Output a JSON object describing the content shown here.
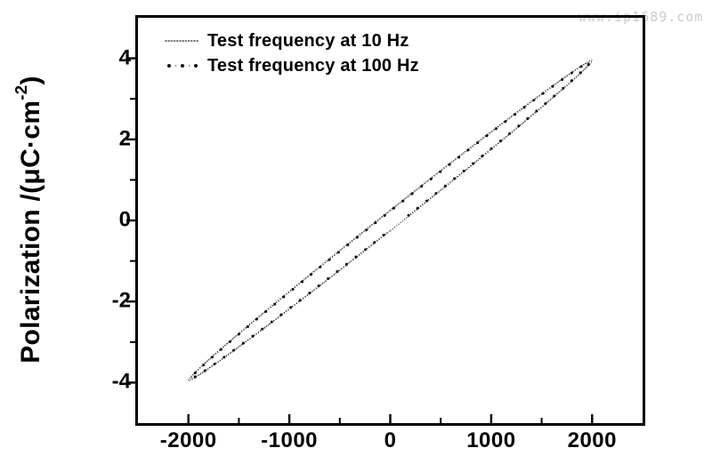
{
  "watermark": {
    "text": "www.ip1689.com",
    "color": "#c8cbd4"
  },
  "legend": {
    "items": [
      {
        "label": "Test frequency at 10 Hz",
        "marker": "fine-dotted-line"
      },
      {
        "label": "Test frequency at 100 Hz",
        "marker": "sparse-dots"
      }
    ]
  },
  "axes": {
    "ylabel_full": "Polarization /(μC·cm⁻²)",
    "ylabel_parts": {
      "pre": "Polarization /(μC·cm",
      "sup": "-2",
      "post": ")"
    },
    "x_tick_labels": [
      "-2000",
      "-1000",
      "0",
      "1000",
      "2000"
    ],
    "y_tick_labels": [
      "4",
      "2",
      "0",
      "-2",
      "-4"
    ]
  },
  "chart_data": {
    "type": "line",
    "subtype": "ferroelectric P-E hysteresis loop",
    "title": "",
    "xlabel": "",
    "ylabel": "Polarization /(μC·cm⁻²)",
    "xlim": [
      -2500,
      2500
    ],
    "ylim": [
      -5,
      5
    ],
    "x_major_ticks": [
      -2000,
      -1000,
      0,
      1000,
      2000
    ],
    "x_minor_ticks": [
      -1500,
      -500,
      500,
      1500
    ],
    "y_major_ticks": [
      4,
      2,
      0,
      -2,
      -4
    ],
    "y_minor_ticks": [
      3,
      1,
      -1,
      -3
    ],
    "grid": false,
    "legend_position": "top-left-inside",
    "line_color": "#000000",
    "series": [
      {
        "name": "Test frequency at 10 Hz",
        "style": "fine-dot",
        "color": "#474747",
        "model": "E = Ae*sin(t); P = Ap*sin(t - delta)",
        "Ae": 2000,
        "Ap": 3.95,
        "delta_rad": 0.065,
        "t_start": 0,
        "t_end": 6.2832,
        "fine_dot_radius": 0.7,
        "fine_dot_spacing": 2.6,
        "key_points": {
          "tip_positive": [
            2000,
            3.95
          ],
          "tip_negative": [
            -2000,
            -3.95
          ],
          "P_at_E0": 0.26,
          "E_at_P0": 130
        }
      },
      {
        "name": "Test frequency at 100 Hz",
        "style": "sparse-dot",
        "color": "#121212",
        "model": "E = Ae*sin(t); P = Ap*sin(t - delta)",
        "Ae": 1975,
        "Ap": 3.9,
        "delta_rad": 0.06,
        "t_start": 0.09,
        "t_end": 6.27,
        "fine_dot_radius": 0.55,
        "fine_dot_spacing": 2.8,
        "marker_dot_radius": 1.55,
        "marker_dot_spacing": 13,
        "key_points": {
          "tip_positive": [
            1975,
            3.9
          ],
          "tip_negative": [
            -1975,
            -3.9
          ],
          "P_at_E0": 0.23,
          "E_at_P0": 118
        }
      }
    ]
  }
}
